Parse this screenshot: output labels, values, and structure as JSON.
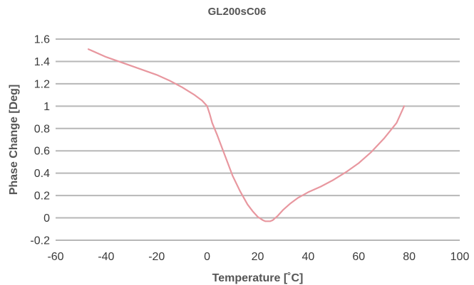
{
  "chart_data": {
    "type": "line",
    "title": "GL200sC06",
    "xlabel": "Temperature [˚C]",
    "ylabel": "Phase Change [Deg]",
    "xlim": [
      -60,
      100
    ],
    "ylim": [
      -0.2,
      1.6
    ],
    "x_ticks": [
      "-60",
      "-40",
      "-20",
      "0",
      "20",
      "40",
      "60",
      "80",
      "100"
    ],
    "y_ticks": [
      "-0.2",
      "0",
      "0.2",
      "0.4",
      "0.6",
      "0.8",
      "1",
      "1.2",
      "1.4",
      "1.6"
    ],
    "grid": "horizontal",
    "legend": "none",
    "series": [
      {
        "color": "#e8979f",
        "x": [
          -47,
          -40,
          -30,
          -20,
          -15,
          -10,
          -5,
          -2,
          0,
          1,
          2,
          4,
          6,
          8,
          10,
          13,
          16,
          18,
          20,
          22,
          23,
          24,
          25,
          26,
          28,
          30,
          33,
          36,
          40,
          45,
          50,
          55,
          60,
          65,
          70,
          75,
          78
        ],
        "y": [
          1.51,
          1.44,
          1.36,
          1.28,
          1.23,
          1.17,
          1.1,
          1.05,
          1.0,
          0.93,
          0.85,
          0.74,
          0.62,
          0.5,
          0.38,
          0.24,
          0.12,
          0.06,
          0.01,
          -0.02,
          -0.03,
          -0.03,
          -0.03,
          -0.02,
          0.02,
          0.07,
          0.13,
          0.18,
          0.23,
          0.28,
          0.34,
          0.41,
          0.49,
          0.59,
          0.71,
          0.85,
          1.0
        ]
      }
    ]
  }
}
